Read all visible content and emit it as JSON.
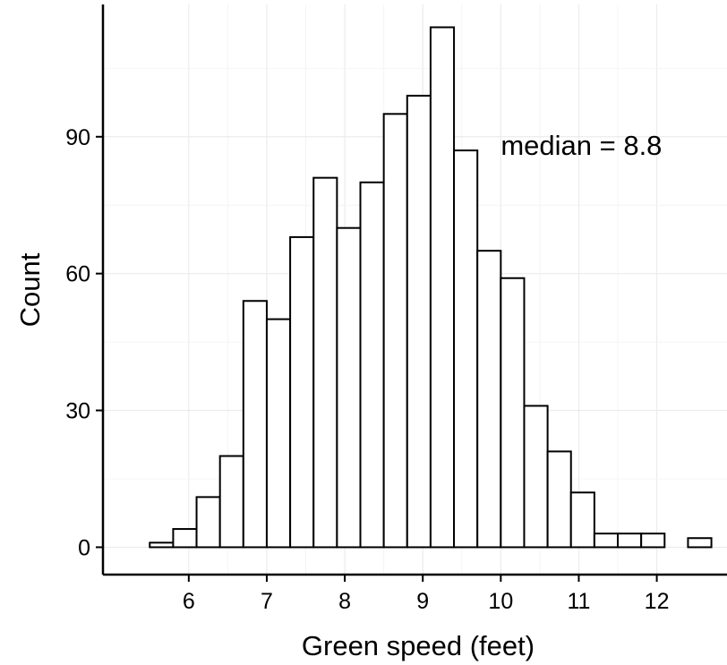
{
  "chart_data": {
    "type": "bar",
    "title": "",
    "xlabel": "Green speed (feet)",
    "ylabel": "Count",
    "bin_width": 0.3,
    "bins": [
      {
        "x0": 5.5,
        "x1": 5.8,
        "count": 1
      },
      {
        "x0": 5.8,
        "x1": 6.1,
        "count": 4
      },
      {
        "x0": 6.1,
        "x1": 6.4,
        "count": 11
      },
      {
        "x0": 6.4,
        "x1": 6.7,
        "count": 20
      },
      {
        "x0": 6.7,
        "x1": 7.0,
        "count": 54
      },
      {
        "x0": 7.0,
        "x1": 7.3,
        "count": 50
      },
      {
        "x0": 7.3,
        "x1": 7.6,
        "count": 68
      },
      {
        "x0": 7.6,
        "x1": 7.9,
        "count": 81
      },
      {
        "x0": 7.9,
        "x1": 8.2,
        "count": 70
      },
      {
        "x0": 8.2,
        "x1": 8.5,
        "count": 80
      },
      {
        "x0": 8.5,
        "x1": 8.8,
        "count": 95
      },
      {
        "x0": 8.8,
        "x1": 9.1,
        "count": 99
      },
      {
        "x0": 9.1,
        "x1": 9.4,
        "count": 114
      },
      {
        "x0": 9.4,
        "x1": 9.7,
        "count": 87
      },
      {
        "x0": 9.7,
        "x1": 10.0,
        "count": 65
      },
      {
        "x0": 10.0,
        "x1": 10.3,
        "count": 59
      },
      {
        "x0": 10.3,
        "x1": 10.6,
        "count": 31
      },
      {
        "x0": 10.6,
        "x1": 10.9,
        "count": 21
      },
      {
        "x0": 10.9,
        "x1": 11.2,
        "count": 12
      },
      {
        "x0": 11.2,
        "x1": 11.5,
        "count": 3
      },
      {
        "x0": 11.5,
        "x1": 11.8,
        "count": 3
      },
      {
        "x0": 11.8,
        "x1": 12.1,
        "count": 3
      },
      {
        "x0": 12.1,
        "x1": 12.4,
        "count": 0
      },
      {
        "x0": 12.4,
        "x1": 12.7,
        "count": 2
      }
    ],
    "xlim": [
      4.9,
      12.9
    ],
    "ylim": [
      -6,
      119
    ],
    "x_ticks": [
      6,
      7,
      8,
      9,
      10,
      11,
      12
    ],
    "x_tick_labels": [
      "6",
      "7",
      "8",
      "9",
      "10",
      "11",
      "12"
    ],
    "y_ticks": [
      0,
      30,
      60,
      90
    ],
    "y_tick_labels": [
      "0",
      "30",
      "60",
      "90"
    ],
    "grid": true,
    "legend": "none",
    "bar_fill": "#ffffff",
    "bar_stroke": "#000000",
    "annotation": {
      "text": "median = 8.8",
      "x": 10.0,
      "y": 86
    }
  }
}
